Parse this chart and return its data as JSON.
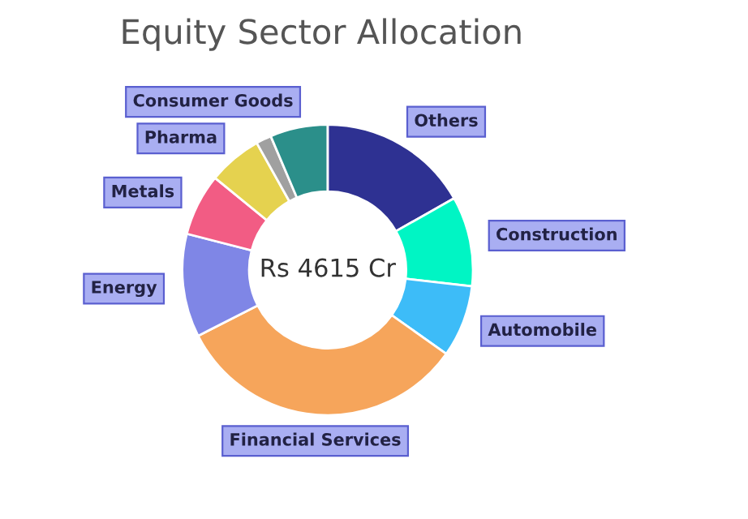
{
  "chart_data": {
    "type": "donut",
    "title": "Equity Sector Allocation",
    "annotations": [
      "Rs 4615 Cr"
    ],
    "categories": [
      "Others",
      "Construction",
      "Automobile",
      "Financial Services",
      "Energy",
      "Metals",
      "Pharma",
      null,
      "Consumer Goods"
    ],
    "values": [
      16.8,
      10.0,
      8.0,
      32.7,
      11.5,
      6.9,
      6.0,
      1.7,
      6.4
    ],
    "colors": [
      "#2e3192",
      "#00f5c4",
      "#3dbcf8",
      "#f6a55b",
      "#7f86e6",
      "#f25c84",
      "#e5d24f",
      "#a0a0a0",
      "#2b8f8a"
    ]
  }
}
